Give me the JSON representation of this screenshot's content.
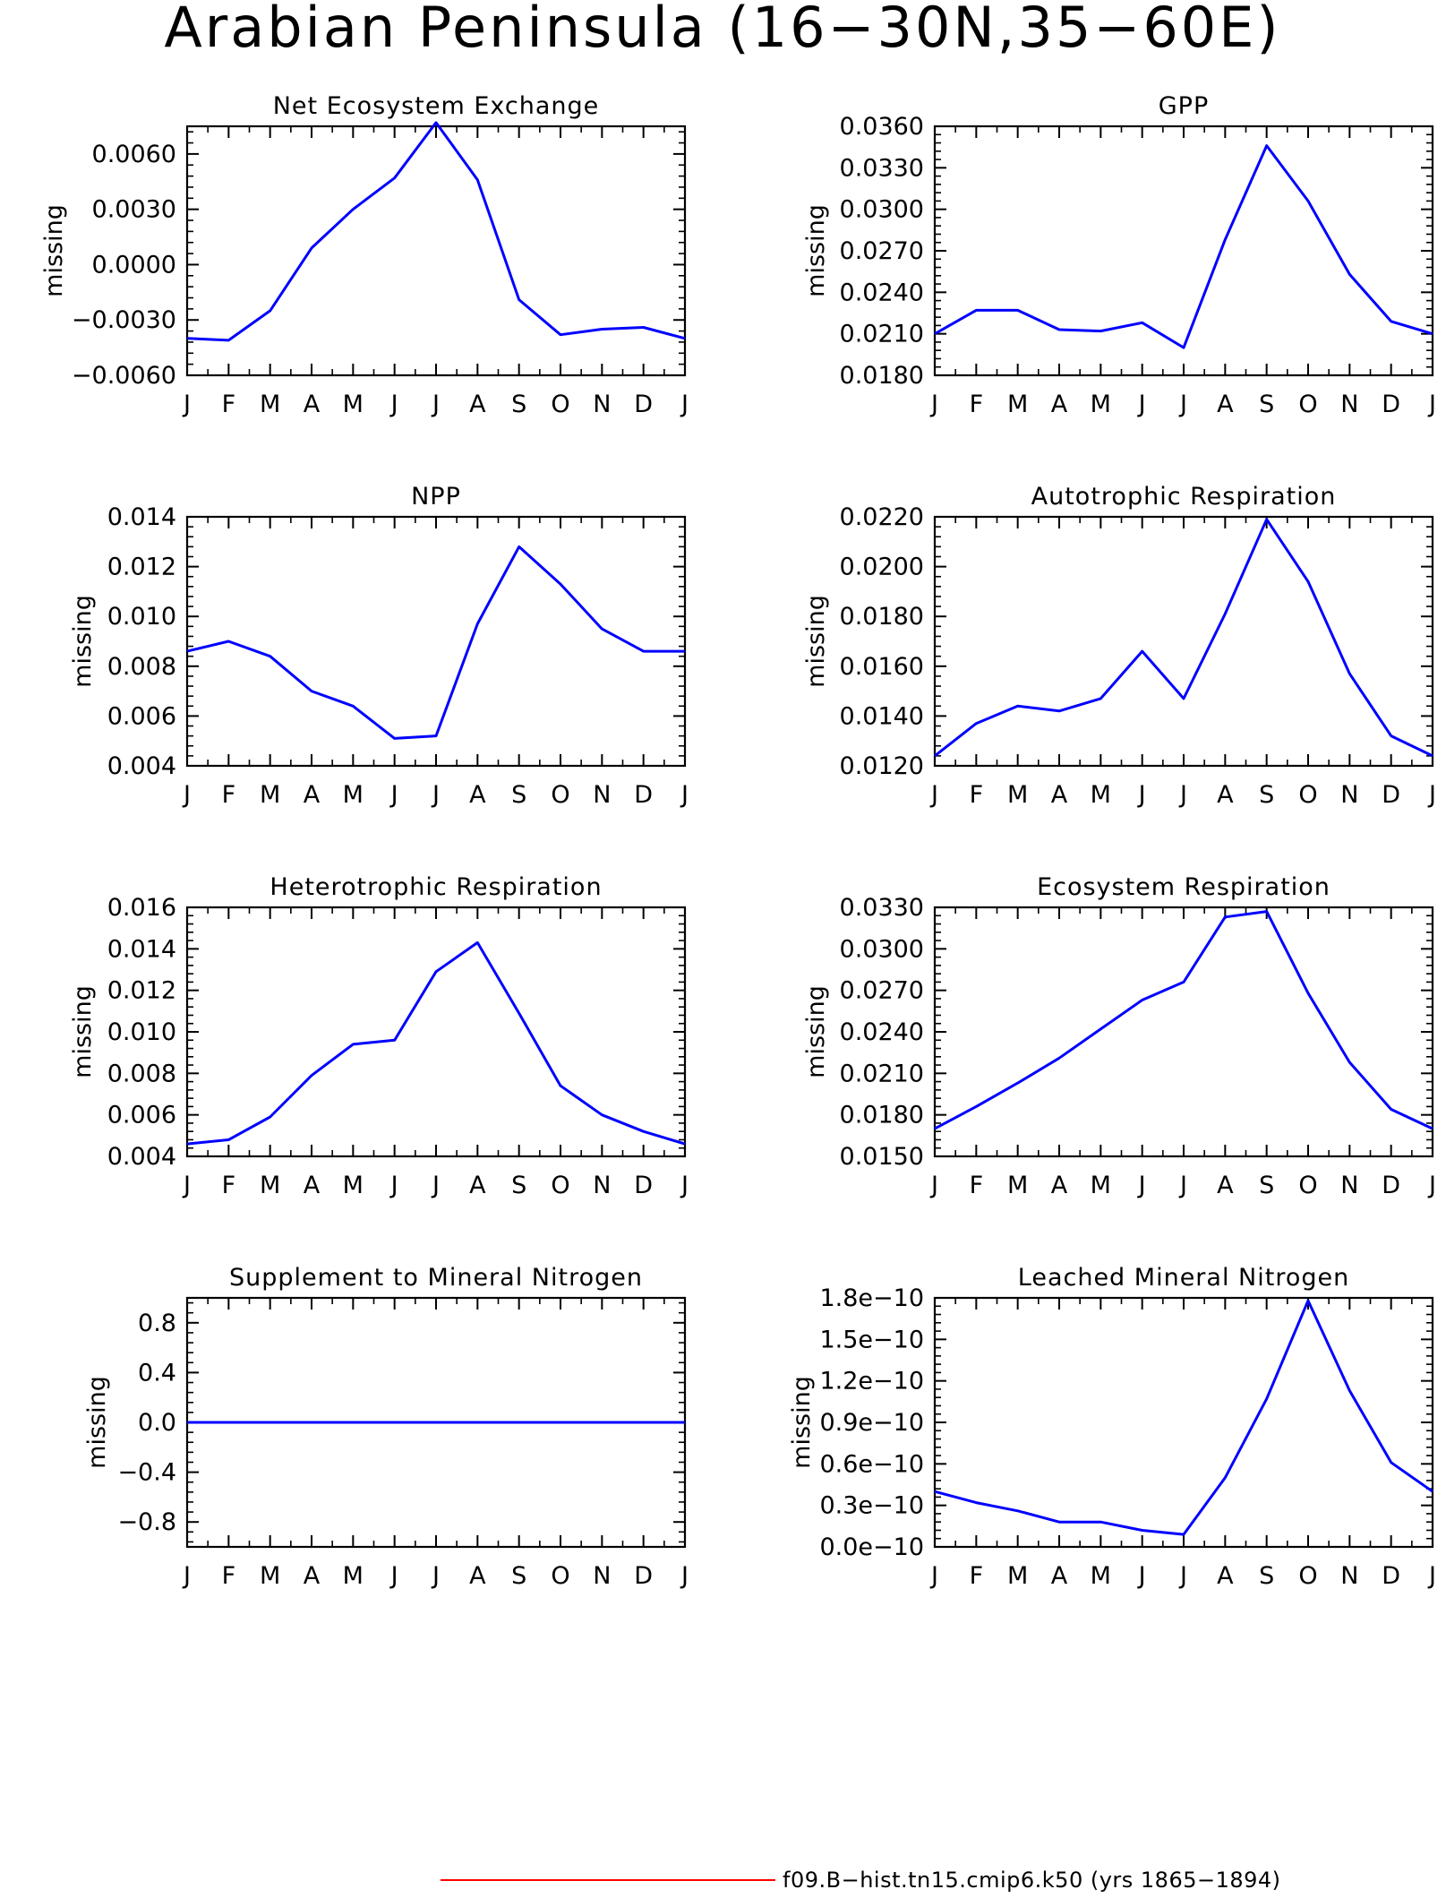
{
  "figure": {
    "title": "Arabian Peninsula (16−30N,35−60E)",
    "line_color": "#0000ff",
    "legend": {
      "label": "f09.B−hist.tn15.cmip6.k50 (yrs 1865−1894)",
      "color": "#ff0000"
    }
  },
  "chart_data": [
    {
      "type": "line",
      "title": "Net Ecosystem Exchange",
      "ylabel": "missing",
      "categories": [
        "J",
        "F",
        "M",
        "A",
        "M",
        "J",
        "J",
        "A",
        "S",
        "O",
        "N",
        "D",
        "J"
      ],
      "ylim": [
        -0.006,
        0.0075
      ],
      "yticks": [
        -0.006,
        -0.003,
        0.0,
        0.003,
        0.006
      ],
      "ytick_labels": [
        "−0.0060",
        "−0.0030",
        "0.0000",
        "0.0030",
        "0.0060"
      ],
      "values": [
        -0.004,
        -0.0041,
        -0.0025,
        0.0009,
        0.003,
        0.0047,
        0.0077,
        0.0046,
        -0.0019,
        -0.0038,
        -0.0035,
        -0.0034,
        -0.004
      ]
    },
    {
      "type": "line",
      "title": "GPP",
      "ylabel": "missing",
      "categories": [
        "J",
        "F",
        "M",
        "A",
        "M",
        "J",
        "J",
        "A",
        "S",
        "O",
        "N",
        "D",
        "J"
      ],
      "ylim": [
        0.018,
        0.036
      ],
      "yticks": [
        0.018,
        0.021,
        0.024,
        0.027,
        0.03,
        0.033,
        0.036
      ],
      "ytick_labels": [
        "0.0180",
        "0.0210",
        "0.0240",
        "0.0270",
        "0.0300",
        "0.0330",
        "0.0360"
      ],
      "values": [
        0.021,
        0.0227,
        0.0227,
        0.0213,
        0.0212,
        0.0218,
        0.02,
        0.0278,
        0.0346,
        0.0306,
        0.0253,
        0.0219,
        0.021
      ]
    },
    {
      "type": "line",
      "title": "NPP",
      "ylabel": "missing",
      "categories": [
        "J",
        "F",
        "M",
        "A",
        "M",
        "J",
        "J",
        "A",
        "S",
        "O",
        "N",
        "D",
        "J"
      ],
      "ylim": [
        0.004,
        0.014
      ],
      "yticks": [
        0.004,
        0.006,
        0.008,
        0.01,
        0.012,
        0.014
      ],
      "ytick_labels": [
        "0.004",
        "0.006",
        "0.008",
        "0.010",
        "0.012",
        "0.014"
      ],
      "values": [
        0.0086,
        0.009,
        0.0084,
        0.007,
        0.0064,
        0.0051,
        0.0052,
        0.0097,
        0.0128,
        0.0113,
        0.0095,
        0.0086,
        0.0086
      ]
    },
    {
      "type": "line",
      "title": "Autotrophic Respiration",
      "ylabel": "missing",
      "categories": [
        "J",
        "F",
        "M",
        "A",
        "M",
        "J",
        "J",
        "A",
        "S",
        "O",
        "N",
        "D",
        "J"
      ],
      "ylim": [
        0.012,
        0.022
      ],
      "yticks": [
        0.012,
        0.014,
        0.016,
        0.018,
        0.02,
        0.022
      ],
      "ytick_labels": [
        "0.0120",
        "0.0140",
        "0.0160",
        "0.0180",
        "0.0200",
        "0.0220"
      ],
      "values": [
        0.0124,
        0.0137,
        0.0144,
        0.0142,
        0.0147,
        0.0166,
        0.0147,
        0.0181,
        0.0219,
        0.0194,
        0.0157,
        0.0132,
        0.0124
      ]
    },
    {
      "type": "line",
      "title": "Heterotrophic Respiration",
      "ylabel": "missing",
      "categories": [
        "J",
        "F",
        "M",
        "A",
        "M",
        "J",
        "J",
        "A",
        "S",
        "O",
        "N",
        "D",
        "J"
      ],
      "ylim": [
        0.004,
        0.016
      ],
      "yticks": [
        0.004,
        0.006,
        0.008,
        0.01,
        0.012,
        0.014,
        0.016
      ],
      "ytick_labels": [
        "0.004",
        "0.006",
        "0.008",
        "0.010",
        "0.012",
        "0.014",
        "0.016"
      ],
      "values": [
        0.0046,
        0.0048,
        0.0059,
        0.0079,
        0.0094,
        0.0096,
        0.0129,
        0.0143,
        0.0109,
        0.0074,
        0.006,
        0.0052,
        0.0046
      ]
    },
    {
      "type": "line",
      "title": "Ecosystem Respiration",
      "ylabel": "missing",
      "categories": [
        "J",
        "F",
        "M",
        "A",
        "M",
        "J",
        "J",
        "A",
        "S",
        "O",
        "N",
        "D",
        "J"
      ],
      "ylim": [
        0.015,
        0.033
      ],
      "yticks": [
        0.015,
        0.018,
        0.021,
        0.024,
        0.027,
        0.03,
        0.033
      ],
      "ytick_labels": [
        "0.0150",
        "0.0180",
        "0.0210",
        "0.0240",
        "0.0270",
        "0.0300",
        "0.0330"
      ],
      "values": [
        0.017,
        0.0186,
        0.0203,
        0.0221,
        0.0242,
        0.0263,
        0.0276,
        0.0323,
        0.0327,
        0.0268,
        0.0218,
        0.0184,
        0.017
      ]
    },
    {
      "type": "line",
      "title": "Supplement to Mineral Nitrogen",
      "ylabel": "missing",
      "categories": [
        "J",
        "F",
        "M",
        "A",
        "M",
        "J",
        "J",
        "A",
        "S",
        "O",
        "N",
        "D",
        "J"
      ],
      "ylim": [
        -1.0,
        1.0
      ],
      "yticks": [
        -0.8,
        -0.4,
        0.0,
        0.4,
        0.8
      ],
      "ytick_labels": [
        "−0.8",
        "−0.4",
        "0.0",
        "0.4",
        "0.8"
      ],
      "values": [
        0,
        0,
        0,
        0,
        0,
        0,
        0,
        0,
        0,
        0,
        0,
        0,
        0
      ]
    },
    {
      "type": "line",
      "title": "Leached Mineral Nitrogen",
      "ylabel": "missing",
      "categories": [
        "J",
        "F",
        "M",
        "A",
        "M",
        "J",
        "J",
        "A",
        "S",
        "O",
        "N",
        "D",
        "J"
      ],
      "ylim": [
        0.0,
        1.8e-10
      ],
      "yticks": [
        0.0,
        3e-11,
        6e-11,
        9e-11,
        1.2e-10,
        1.5e-10,
        1.8e-10
      ],
      "ytick_labels": [
        "0.0e−10",
        "0.3e−10",
        "0.6e−10",
        "0.9e−10",
        "1.2e−10",
        "1.5e−10",
        "1.8e−10"
      ],
      "values": [
        4e-11,
        3.2e-11,
        2.6e-11,
        1.8e-11,
        1.8e-11,
        1.2e-11,
        9e-12,
        5e-11,
        1.07e-10,
        1.78e-10,
        1.13e-10,
        6.1e-11,
        4e-11
      ]
    }
  ]
}
